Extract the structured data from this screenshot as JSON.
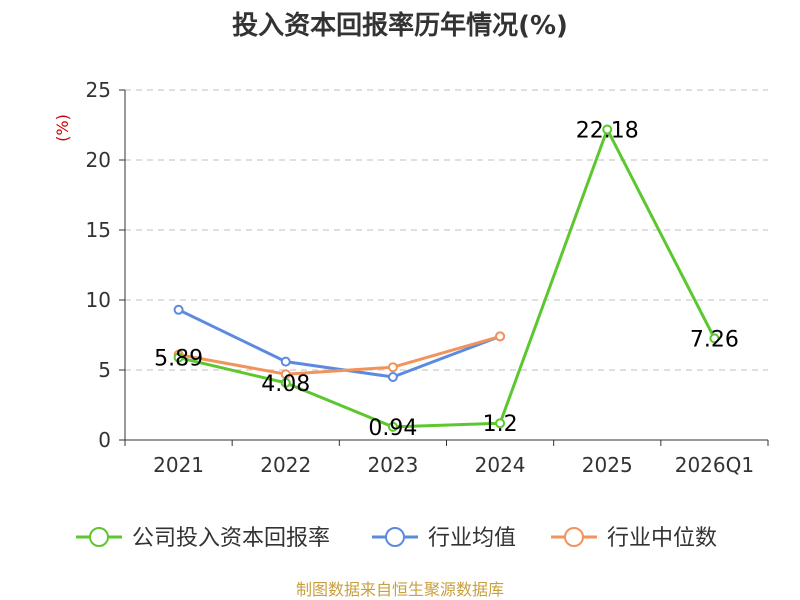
{
  "chart_data": {
    "type": "line",
    "title": "投入资本回报率历年情况(%)",
    "unit_label": "(%)",
    "categories": [
      "2021",
      "2022",
      "2023",
      "2024",
      "2025",
      "2026Q1"
    ],
    "y_ticks": [
      "0",
      "5",
      "10",
      "15",
      "20",
      "25"
    ],
    "ylim": [
      0,
      25
    ],
    "grid": true,
    "legend_position": "bottom",
    "series": [
      {
        "name": "公司投入资本回报率",
        "color": "#5cc72f",
        "values": [
          5.89,
          4.08,
          0.94,
          1.2,
          22.18,
          7.26
        ],
        "labels": [
          "5.89",
          "4.08",
          "0.94",
          "1.2",
          "22.18",
          "7.26"
        ]
      },
      {
        "name": "行业均值",
        "color": "#5b8ae0",
        "values": [
          9.3,
          5.6,
          4.5,
          7.4,
          null,
          null
        ]
      },
      {
        "name": "行业中位数",
        "color": "#f2935c",
        "values": [
          6.1,
          4.7,
          5.2,
          7.4,
          null,
          null
        ]
      }
    ]
  },
  "source_text": "制图数据来自恒生聚源数据库"
}
